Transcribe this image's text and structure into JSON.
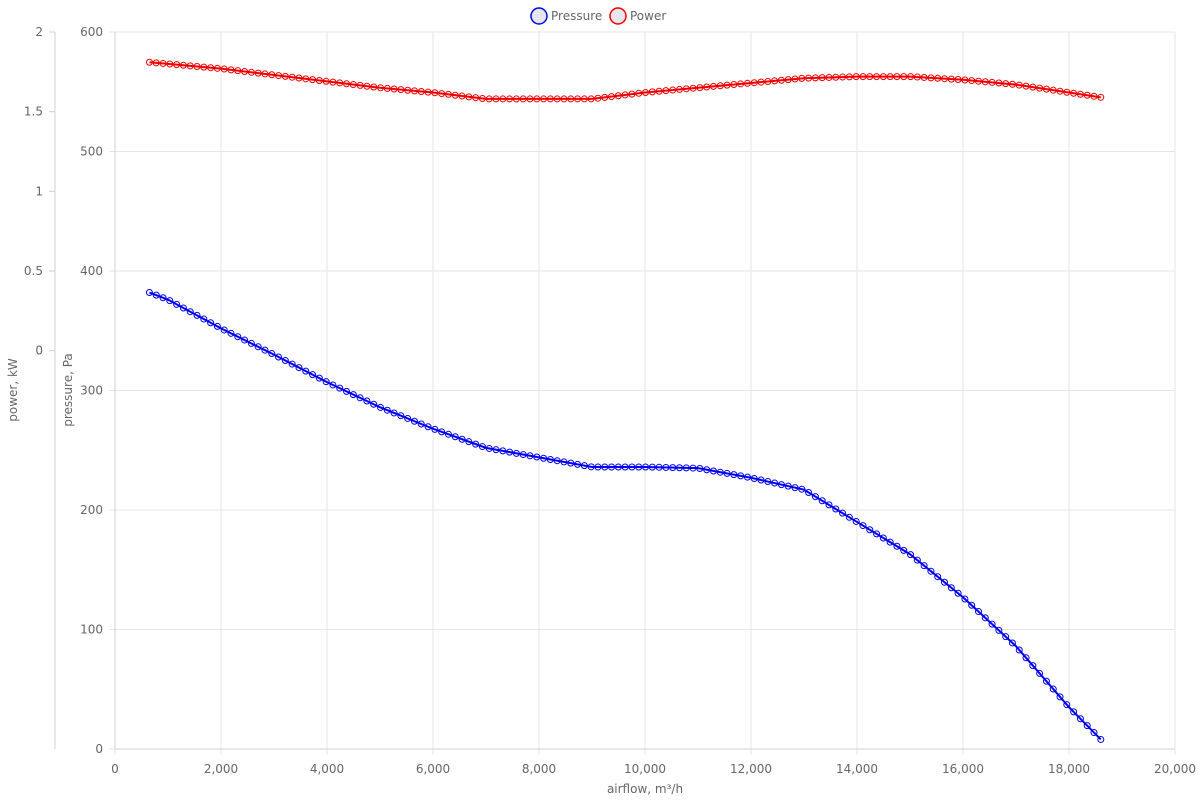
{
  "chart_data": {
    "type": "line",
    "xlabel": "airflow, m³/h",
    "x_range": [
      0,
      20000
    ],
    "x_ticks": [
      "0",
      "2,000",
      "4,000",
      "6,000",
      "8,000",
      "10,000",
      "12,000",
      "14,000",
      "16,000",
      "18,000",
      "20,000"
    ],
    "y_axes": [
      {
        "id": "pressure",
        "label": "pressure, Pa",
        "range": [
          0,
          600
        ],
        "ticks": [
          "0",
          "100",
          "200",
          "300",
          "400",
          "500",
          "600"
        ]
      },
      {
        "id": "power",
        "label": "power, kW",
        "range": [
          -2.5,
          2
        ],
        "ticks": [
          "0",
          "0.5",
          "1",
          "1.5",
          "2"
        ]
      }
    ],
    "grid": true,
    "legend_position": "top-center",
    "series": [
      {
        "name": "Pressure",
        "axis": "pressure",
        "color": "#0000ee",
        "x": [
          650,
          1000,
          2000,
          3000,
          4000,
          5000,
          6000,
          7000,
          8000,
          9000,
          10000,
          11000,
          12000,
          13000,
          14000,
          15000,
          16000,
          17000,
          18000,
          18600
        ],
        "y": [
          382,
          376,
          352,
          330,
          307,
          286,
          268,
          252,
          244,
          236,
          236,
          235,
          227,
          217,
          190,
          163,
          127,
          86,
          35,
          8
        ]
      },
      {
        "name": "Power",
        "axis": "power",
        "color": "#ee0000",
        "x": [
          650,
          1000,
          2000,
          3000,
          4000,
          5000,
          6000,
          7000,
          8000,
          9000,
          10000,
          11000,
          12000,
          13000,
          14000,
          15000,
          16000,
          17000,
          18000,
          18600
        ],
        "y": [
          1.81,
          1.8,
          1.77,
          1.73,
          1.69,
          1.65,
          1.62,
          1.58,
          1.58,
          1.58,
          1.62,
          1.65,
          1.68,
          1.71,
          1.72,
          1.72,
          1.7,
          1.67,
          1.62,
          1.59
        ]
      }
    ]
  }
}
